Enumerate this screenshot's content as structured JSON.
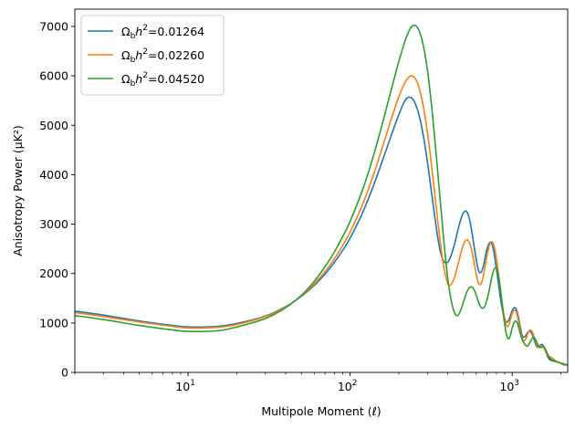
{
  "chart_data": {
    "type": "line",
    "xscale": "log",
    "xlim": [
      2,
      2200
    ],
    "ylim": [
      0,
      7350
    ],
    "xlabel": "Multipole Moment (ℓ)",
    "ylabel": "Anisotropy Power (μK²)",
    "x_ticks": [
      {
        "value": 10,
        "base": "10",
        "exp": "1"
      },
      {
        "value": 100,
        "base": "10",
        "exp": "2"
      },
      {
        "value": 1000,
        "base": "10",
        "exp": "3"
      }
    ],
    "y_ticks": [
      "0",
      "1000",
      "2000",
      "3000",
      "4000",
      "5000",
      "6000",
      "7000"
    ],
    "legend_position": "upper-left",
    "legend_prefix": "Ω",
    "legend_sub": "b",
    "legend_mid": "h",
    "legend_sup": "2",
    "x": [
      2,
      3,
      5,
      8,
      10,
      15,
      20,
      30,
      40,
      50,
      60,
      70,
      80,
      90,
      100,
      120,
      140,
      160,
      180,
      200,
      220,
      240,
      260,
      280,
      300,
      320,
      340,
      360,
      380,
      400,
      420,
      440,
      460,
      480,
      500,
      520,
      540,
      560,
      580,
      600,
      620,
      640,
      660,
      680,
      700,
      720,
      740,
      760,
      780,
      800,
      820,
      840,
      860,
      880,
      900,
      920,
      940,
      960,
      980,
      1000,
      1030,
      1060,
      1090,
      1120,
      1150,
      1180,
      1210,
      1240,
      1270,
      1300,
      1340,
      1380,
      1420,
      1460,
      1500,
      1540,
      1580,
      1620,
      1660,
      1700,
      1750,
      1800,
      1850,
      1900,
      1950,
      2000,
      2050,
      2100,
      2150,
      2200
    ],
    "series": [
      {
        "name": "=0.01264",
        "color": "#1f77b4",
        "values": [
          1240,
          1160,
          1040,
          950,
          920,
          930,
          990,
          1140,
          1330,
          1540,
          1760,
          1990,
          2230,
          2470,
          2720,
          3250,
          3800,
          4330,
          4810,
          5220,
          5520,
          5550,
          5320,
          4870,
          4250,
          3570,
          2930,
          2450,
          2240,
          2230,
          2370,
          2590,
          2850,
          3080,
          3230,
          3260,
          3150,
          2900,
          2580,
          2270,
          2060,
          2020,
          2120,
          2320,
          2500,
          2610,
          2630,
          2530,
          2330,
          2080,
          1820,
          1570,
          1360,
          1190,
          1080,
          1020,
          1030,
          1090,
          1170,
          1250,
          1310,
          1270,
          1130,
          930,
          760,
          710,
          740,
          800,
          830,
          820,
          740,
          610,
          520,
          510,
          560,
          560,
          490,
          390,
          310,
          260,
          240,
          230,
          220,
          210,
          200,
          180,
          160,
          150,
          150,
          150
        ]
      },
      {
        "name": "=0.02260",
        "color": "#ff7f0e",
        "values": [
          1210,
          1130,
          1020,
          930,
          900,
          910,
          970,
          1130,
          1320,
          1550,
          1790,
          2040,
          2300,
          2570,
          2840,
          3420,
          4020,
          4610,
          5140,
          5580,
          5890,
          6000,
          5860,
          5460,
          4850,
          4100,
          3330,
          2630,
          2100,
          1800,
          1780,
          1920,
          2150,
          2390,
          2590,
          2680,
          2650,
          2500,
          2250,
          1980,
          1800,
          1790,
          1910,
          2140,
          2370,
          2550,
          2640,
          2620,
          2500,
          2300,
          2050,
          1780,
          1500,
          1260,
          1070,
          950,
          930,
          990,
          1090,
          1190,
          1260,
          1220,
          1050,
          850,
          700,
          640,
          670,
          760,
          840,
          860,
          800,
          670,
          560,
          510,
          530,
          530,
          470,
          390,
          340,
          320,
          300,
          270,
          240,
          220,
          200,
          180,
          160,
          150,
          150,
          150
        ]
      },
      {
        "name": "=0.04520",
        "color": "#2ca02c",
        "values": [
          1150,
          1070,
          950,
          860,
          830,
          840,
          920,
          1090,
          1310,
          1560,
          1840,
          2140,
          2440,
          2750,
          3060,
          3720,
          4410,
          5100,
          5740,
          6300,
          6740,
          7000,
          6980,
          6680,
          6110,
          5310,
          4390,
          3460,
          2600,
          1910,
          1460,
          1210,
          1150,
          1250,
          1420,
          1590,
          1700,
          1730,
          1680,
          1560,
          1420,
          1320,
          1300,
          1350,
          1480,
          1650,
          1850,
          2020,
          2110,
          2100,
          1970,
          1750,
          1480,
          1200,
          960,
          780,
          690,
          690,
          780,
          900,
          1020,
          1030,
          940,
          790,
          670,
          600,
          550,
          530,
          570,
          640,
          700,
          690,
          610,
          530,
          500,
          520,
          510,
          440,
          360,
          300,
          260,
          240,
          220,
          210,
          200,
          190,
          180,
          170,
          160,
          150
        ]
      }
    ]
  }
}
